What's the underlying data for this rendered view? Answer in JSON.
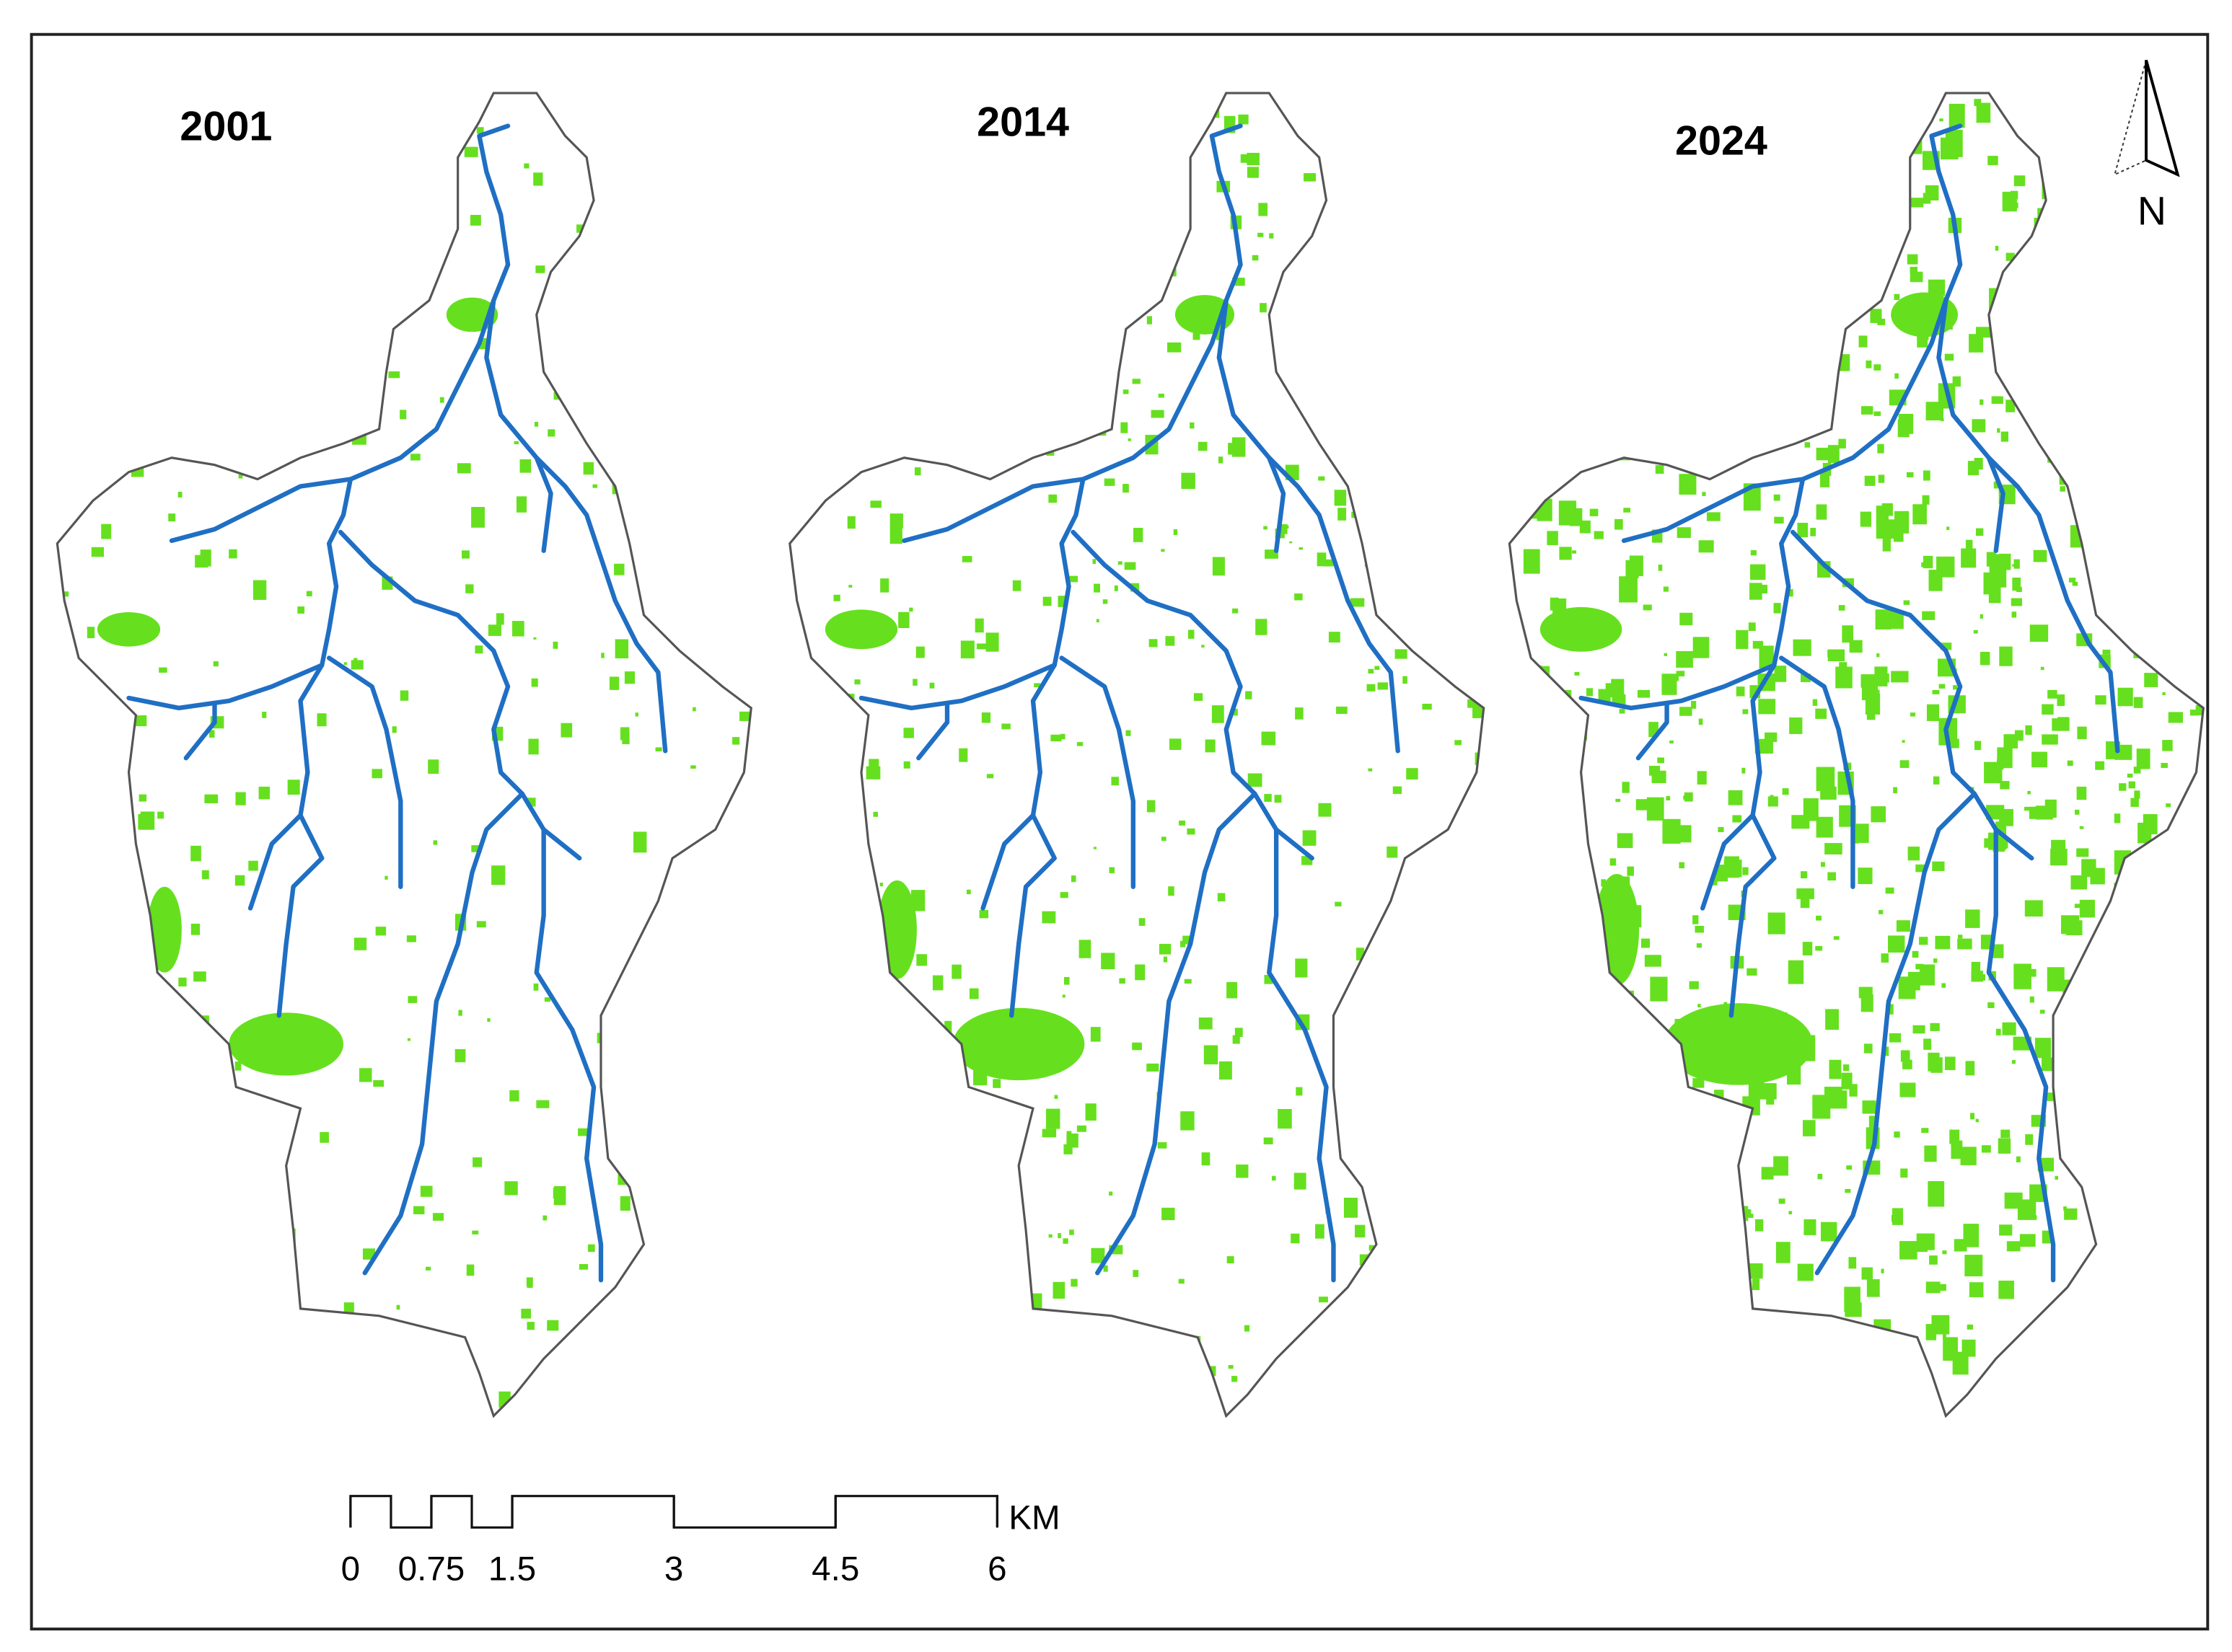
{
  "maps": [
    {
      "title": "2001"
    },
    {
      "title": "2014"
    },
    {
      "title": "2024"
    }
  ],
  "north_arrow": {
    "label": "N"
  },
  "scale_bar": {
    "ticks": [
      0,
      0.75,
      1.5,
      3,
      4.5,
      6
    ],
    "unit": "KM"
  }
}
